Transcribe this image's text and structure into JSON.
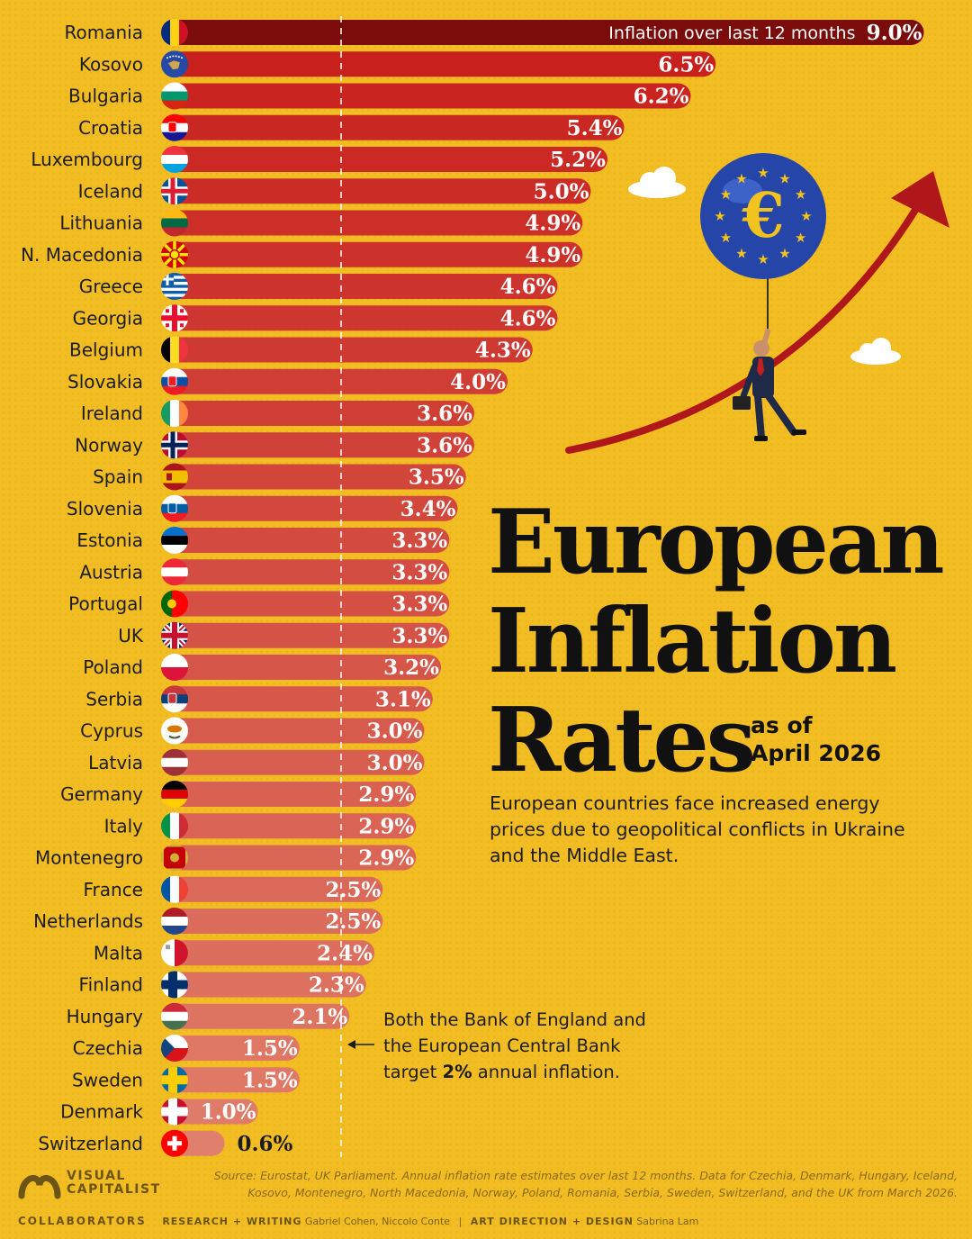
{
  "chart_data": {
    "type": "bar",
    "orientation": "horizontal",
    "title": "European Inflation Rates",
    "subtitle": "as of April 2026",
    "header_label": "Inflation over last 12 months",
    "value_suffix": "%",
    "reference_line": 2,
    "xlim": [
      0,
      9
    ],
    "categories": [
      "Romania",
      "Kosovo",
      "Bulgaria",
      "Croatia",
      "Luxembourg",
      "Iceland",
      "Lithuania",
      "N. Macedonia",
      "Greece",
      "Georgia",
      "Belgium",
      "Slovakia",
      "Ireland",
      "Norway",
      "Spain",
      "Slovenia",
      "Estonia",
      "Austria",
      "Portugal",
      "UK",
      "Poland",
      "Serbia",
      "Cyprus",
      "Latvia",
      "Germany",
      "Italy",
      "Montenegro",
      "France",
      "Netherlands",
      "Malta",
      "Finland",
      "Hungary",
      "Czechia",
      "Sweden",
      "Denmark",
      "Switzerland"
    ],
    "values": [
      9.0,
      6.5,
      6.2,
      5.4,
      5.2,
      5.0,
      4.9,
      4.9,
      4.6,
      4.6,
      4.3,
      4.0,
      3.6,
      3.6,
      3.5,
      3.4,
      3.3,
      3.3,
      3.3,
      3.3,
      3.2,
      3.1,
      3.0,
      3.0,
      2.9,
      2.9,
      2.9,
      2.5,
      2.5,
      2.4,
      2.3,
      2.1,
      1.5,
      1.5,
      1.0,
      0.6
    ]
  },
  "flags": [
    "romania",
    "kosovo",
    "bulgaria",
    "croatia",
    "luxembourg",
    "iceland",
    "lithuania",
    "north-macedonia",
    "greece",
    "georgia",
    "belgium",
    "slovakia",
    "ireland",
    "norway",
    "spain",
    "slovenia",
    "estonia",
    "austria",
    "portugal",
    "uk",
    "poland",
    "serbia",
    "cyprus",
    "latvia",
    "germany",
    "italy",
    "montenegro",
    "france",
    "netherlands",
    "malta",
    "finland",
    "hungary",
    "czechia",
    "sweden",
    "denmark",
    "switzerland"
  ],
  "colors": {
    "background": "#f2bd22",
    "bar_dark": "#7a0d0c",
    "bar_mid": "#c8211d",
    "bar_light": "#e07f6b"
  },
  "title_lines": [
    "European",
    "Inflation",
    "Rates"
  ],
  "as_of_lines": [
    "as of",
    "April 2026"
  ],
  "description": "European countries face increased energy prices due to geopolitical conflicts in Ukraine and the Middle East.",
  "annotation": {
    "before": "Both the Bank of England and the European Central Bank target ",
    "bold": "2%",
    "after": " annual inflation."
  },
  "source": "Source: Eurostat, UK Parliament. Annual inflation rate estimates over last 12 months. Data for Czechia, Denmark, Hungary, Iceland, Kosovo, Montenegro, North Macedonia, Norway, Poland, Romania, Serbia, Sweden, Switzerland, and the UK from March 2026.",
  "brand": [
    "VISUAL",
    "CAPITALIST"
  ],
  "credits": {
    "collaborators": "COLLABORATORS",
    "research_label": "RESEARCH + WRITING",
    "research_names": "Gabriel Cohen, Niccolo Conte",
    "art_label": "ART DIRECTION + DESIGN",
    "art_names": "Sabrina Lam"
  },
  "illustration": {
    "balloon_icon": "euro-balloon-icon",
    "arrow_icon": "rising-arrow-icon",
    "currency_symbol": "€"
  }
}
